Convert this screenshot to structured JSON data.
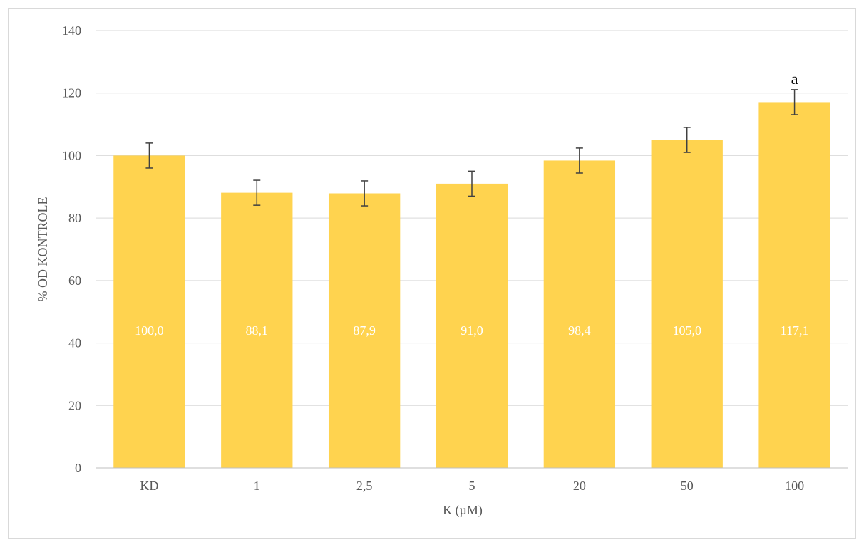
{
  "chart_data": {
    "type": "bar",
    "categories": [
      "KD",
      "1",
      "2,5",
      "5",
      "20",
      "50",
      "100"
    ],
    "values": [
      100.0,
      88.1,
      87.9,
      91.0,
      98.4,
      105.0,
      117.1
    ],
    "value_labels": [
      "100,0",
      "88,1",
      "87,9",
      "91,0",
      "98,4",
      "105,0",
      "117,1"
    ],
    "error": [
      4,
      4,
      4,
      4,
      4,
      4,
      4
    ],
    "annotations": [
      {
        "category": "100",
        "text": "a"
      }
    ],
    "title": "",
    "xlabel": "K (µM)",
    "ylabel": "% OD KONTROLE",
    "ylim": [
      0,
      140
    ],
    "yticks": [
      0,
      20,
      40,
      60,
      80,
      100,
      120,
      140
    ],
    "grid": true,
    "legend": "none",
    "colors": {
      "bar": "#FFD34F",
      "grid": "#d9d9d9",
      "error_bar": "#404040",
      "tick_text": "#595959",
      "data_label": "#ffffff"
    }
  }
}
